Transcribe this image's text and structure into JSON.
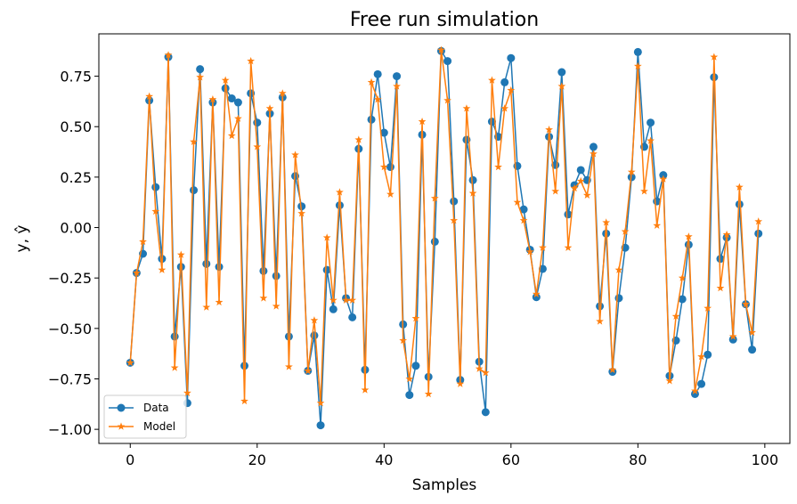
{
  "chart_data": {
    "type": "line",
    "title": "Free run simulation",
    "xlabel": "Samples",
    "ylabel": "y, ŷ",
    "xlim": [
      -4.95,
      103.95
    ],
    "ylim": [
      -1.07,
      0.96
    ],
    "xticks": [
      0,
      20,
      40,
      60,
      80,
      100
    ],
    "xtick_labels": [
      "0",
      "20",
      "40",
      "60",
      "80",
      "100"
    ],
    "yticks": [
      -1.0,
      -0.75,
      -0.5,
      -0.25,
      0.0,
      0.25,
      0.5,
      0.75
    ],
    "ytick_labels": [
      "−1.00",
      "−0.75",
      "−0.50",
      "−0.25",
      "0.00",
      "0.25",
      "0.50",
      "0.75"
    ],
    "grid": false,
    "legend_position": "bottom-left",
    "series": [
      {
        "name": "Data",
        "color": "#1f77b4",
        "marker": "circle",
        "x": [
          0,
          1,
          2,
          3,
          4,
          5,
          6,
          7,
          8,
          9,
          10,
          11,
          12,
          13,
          14,
          15,
          16,
          17,
          18,
          19,
          20,
          21,
          22,
          23,
          24,
          25,
          26,
          27,
          28,
          29,
          30,
          31,
          32,
          33,
          34,
          35,
          36,
          37,
          38,
          39,
          40,
          41,
          42,
          43,
          44,
          45,
          46,
          47,
          48,
          49,
          50,
          51,
          52,
          53,
          54,
          55,
          56,
          57,
          58,
          59,
          60,
          61,
          62,
          63,
          64,
          65,
          66,
          67,
          68,
          69,
          70,
          71,
          72,
          73,
          74,
          75,
          76,
          77,
          78,
          79,
          80,
          81,
          82,
          83,
          84,
          85,
          86,
          87,
          88,
          89,
          90,
          91,
          92,
          93,
          94,
          95,
          96,
          97,
          98,
          99
        ],
        "values": [
          -0.67,
          -0.225,
          -0.13,
          0.63,
          0.2,
          -0.155,
          0.845,
          -0.54,
          -0.195,
          -0.87,
          0.185,
          0.785,
          -0.18,
          0.62,
          -0.195,
          0.69,
          0.64,
          0.62,
          -0.685,
          0.665,
          0.52,
          -0.215,
          0.565,
          -0.24,
          0.645,
          -0.54,
          0.255,
          0.105,
          -0.71,
          -0.535,
          -0.98,
          -0.21,
          -0.405,
          0.11,
          -0.35,
          -0.445,
          0.39,
          -0.705,
          0.535,
          0.76,
          0.47,
          0.3,
          0.75,
          -0.48,
          -0.83,
          -0.685,
          0.46,
          -0.74,
          -0.07,
          0.875,
          0.825,
          0.13,
          -0.755,
          0.435,
          0.235,
          -0.665,
          -0.915,
          0.525,
          0.45,
          0.72,
          0.84,
          0.305,
          0.09,
          -0.11,
          -0.345,
          -0.205,
          0.45,
          0.31,
          0.77,
          0.065,
          0.21,
          0.285,
          0.235,
          0.4,
          -0.39,
          -0.03,
          -0.715,
          -0.35,
          -0.1,
          0.25,
          0.87,
          0.4,
          0.52,
          0.13,
          0.26,
          -0.735,
          -0.56,
          -0.355,
          -0.085,
          -0.825,
          -0.775,
          -0.63,
          0.745,
          -0.155,
          -0.05,
          -0.555,
          0.115,
          -0.38,
          -0.605,
          -0.03
        ]
      },
      {
        "name": "Model",
        "color": "#ff7f0e",
        "marker": "star",
        "x": [
          0,
          1,
          2,
          3,
          4,
          5,
          6,
          7,
          8,
          9,
          10,
          11,
          12,
          13,
          14,
          15,
          16,
          17,
          18,
          19,
          20,
          21,
          22,
          23,
          24,
          25,
          26,
          27,
          28,
          29,
          30,
          31,
          32,
          33,
          34,
          35,
          36,
          37,
          38,
          39,
          40,
          41,
          42,
          43,
          44,
          45,
          46,
          47,
          48,
          49,
          50,
          51,
          52,
          53,
          54,
          55,
          56,
          57,
          58,
          59,
          60,
          61,
          62,
          63,
          64,
          65,
          66,
          67,
          68,
          69,
          70,
          71,
          72,
          73,
          74,
          75,
          76,
          77,
          78,
          79,
          80,
          81,
          82,
          83,
          84,
          85,
          86,
          87,
          88,
          89,
          90,
          91,
          92,
          93,
          94,
          95,
          96,
          97,
          98,
          99
        ],
        "values": [
          -0.67,
          -0.225,
          -0.07,
          0.65,
          0.08,
          -0.21,
          0.855,
          -0.695,
          -0.135,
          -0.82,
          0.425,
          0.745,
          -0.395,
          0.635,
          -0.37,
          0.73,
          0.455,
          0.54,
          -0.86,
          0.825,
          0.4,
          -0.35,
          0.59,
          -0.39,
          0.665,
          -0.69,
          0.36,
          0.07,
          -0.71,
          -0.46,
          -0.87,
          -0.05,
          -0.36,
          0.175,
          -0.36,
          -0.36,
          0.435,
          -0.805,
          0.72,
          0.635,
          0.3,
          0.165,
          0.7,
          -0.56,
          -0.75,
          -0.45,
          0.525,
          -0.825,
          0.145,
          0.88,
          0.63,
          0.035,
          -0.775,
          0.59,
          0.17,
          -0.7,
          -0.72,
          0.73,
          0.3,
          0.59,
          0.68,
          0.125,
          0.035,
          -0.12,
          -0.33,
          -0.1,
          0.485,
          0.18,
          0.7,
          -0.1,
          0.195,
          0.23,
          0.16,
          0.365,
          -0.465,
          0.025,
          -0.705,
          -0.21,
          -0.02,
          0.275,
          0.8,
          0.18,
          0.43,
          0.01,
          0.24,
          -0.76,
          -0.44,
          -0.25,
          -0.045,
          -0.81,
          -0.64,
          -0.4,
          0.845,
          -0.3,
          -0.035,
          -0.54,
          0.2,
          -0.38,
          -0.52,
          0.03
        ]
      }
    ]
  }
}
